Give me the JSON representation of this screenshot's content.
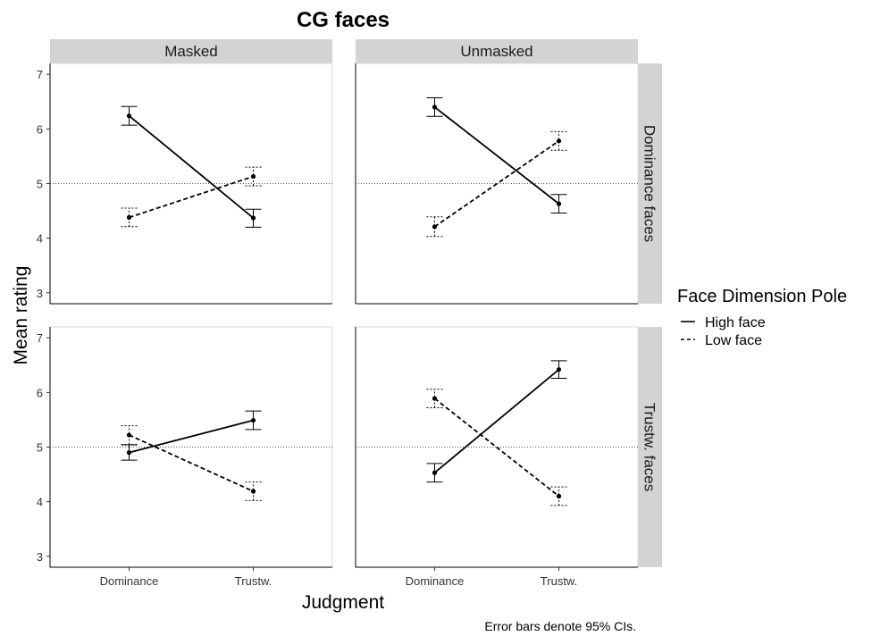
{
  "chart_data": {
    "type": "line",
    "title": "CG faces",
    "xlabel": "Judgment",
    "ylabel": "Mean rating",
    "caption": "Error bars denote 95% CIs.",
    "categories": [
      "Dominance",
      "Trustw."
    ],
    "ylim": [
      2.8,
      7.2
    ],
    "yticks": [
      3,
      4,
      5,
      6,
      7
    ],
    "reference_line": 5,
    "grid": false,
    "facet_columns": [
      "Masked",
      "Unmasked"
    ],
    "facet_rows": [
      "Dominance faces",
      "Trustw. faces"
    ],
    "legend": {
      "title": "Face Dimension Pole",
      "position": "right",
      "entries": [
        {
          "name": "High face",
          "linetype": "solid"
        },
        {
          "name": "Low face",
          "linetype": "dashed"
        }
      ]
    },
    "panels": [
      {
        "column": "Masked",
        "row": "Dominance faces",
        "series": [
          {
            "name": "High face",
            "values": [
              6.24,
              4.37
            ],
            "ci": [
              [
                6.07,
                6.41
              ],
              [
                4.2,
                4.53
              ]
            ]
          },
          {
            "name": "Low face",
            "values": [
              4.38,
              5.13
            ],
            "ci": [
              [
                4.21,
                4.55
              ],
              [
                4.96,
                5.3
              ]
            ]
          }
        ]
      },
      {
        "column": "Unmasked",
        "row": "Dominance faces",
        "series": [
          {
            "name": "High face",
            "values": [
              6.4,
              4.63
            ],
            "ci": [
              [
                6.23,
                6.57
              ],
              [
                4.46,
                4.8
              ]
            ]
          },
          {
            "name": "Low face",
            "values": [
              4.21,
              5.78
            ],
            "ci": [
              [
                4.03,
                4.39
              ],
              [
                5.61,
                5.95
              ]
            ]
          }
        ]
      },
      {
        "column": "Masked",
        "row": "Trustw. faces",
        "series": [
          {
            "name": "High face",
            "values": [
              4.9,
              5.49
            ],
            "ci": [
              [
                4.76,
                5.04
              ],
              [
                5.32,
                5.66
              ]
            ]
          },
          {
            "name": "Low face",
            "values": [
              5.22,
              4.19
            ],
            "ci": [
              [
                5.05,
                5.39
              ],
              [
                4.02,
                4.36
              ]
            ]
          }
        ]
      },
      {
        "column": "Unmasked",
        "row": "Trustw. faces",
        "series": [
          {
            "name": "High face",
            "values": [
              4.53,
              6.42
            ],
            "ci": [
              [
                4.36,
                4.7
              ],
              [
                6.26,
                6.58
              ]
            ]
          },
          {
            "name": "Low face",
            "values": [
              5.89,
              4.1
            ],
            "ci": [
              [
                5.72,
                6.06
              ],
              [
                3.93,
                4.27
              ]
            ]
          }
        ]
      }
    ]
  }
}
